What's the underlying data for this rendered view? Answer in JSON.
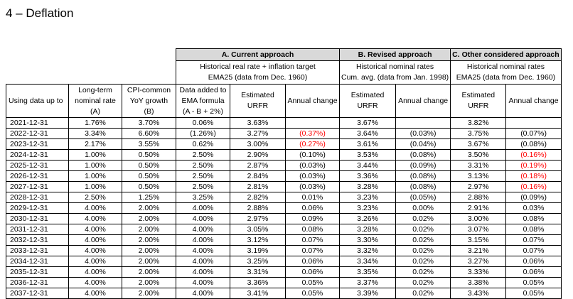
{
  "heading": "4 – Deflation",
  "groups": {
    "a": {
      "title": "A. Current approach",
      "sub1": "Historical real rate + inflation target",
      "sub2": "EMA25 (data from Dec. 1960)"
    },
    "b": {
      "title": "B. Revised approach",
      "sub1": "Historical nominal rates",
      "sub2": "Cum. avg. (data from Jan. 1998)"
    },
    "c": {
      "title": "C. Other considered approach",
      "sub1": "Historical nominal rates",
      "sub2": "EMA25 (data from Dec. 1960)"
    }
  },
  "columns": {
    "date": "Using data up to",
    "nominal": [
      "Long-term",
      "nominal rate",
      "(A)"
    ],
    "cpi": [
      "CPI-common",
      "YoY growth",
      "(B)"
    ],
    "ema": [
      "Data added to",
      "EMA formula",
      "(A - B + 2%)"
    ],
    "urfr": [
      "Estimated",
      "URFR"
    ],
    "change": "Annual change"
  },
  "colors": {
    "negative": "#ff0000",
    "header_fill": "#d9d9d9"
  },
  "rows": [
    {
      "d": "2021-12-31",
      "a": "1.76%",
      "b": "3.70%",
      "ema": "0.06%",
      "ua": "3.63%",
      "ca": "",
      "ub": "3.67%",
      "cb": "",
      "uc": "3.82%",
      "cc": ""
    },
    {
      "d": "2022-12-31",
      "a": "3.34%",
      "b": "6.60%",
      "ema": "(1.26%)",
      "ua": "3.27%",
      "ca": "(0.37%)",
      "can": true,
      "ub": "3.64%",
      "cb": "(0.03%)",
      "uc": "3.75%",
      "cc": "(0.07%)"
    },
    {
      "d": "2023-12-31",
      "a": "2.17%",
      "b": "3.55%",
      "ema": "0.62%",
      "ua": "3.00%",
      "ca": "(0.27%)",
      "can": true,
      "ub": "3.61%",
      "cb": "(0.04%)",
      "uc": "3.67%",
      "cc": "(0.08%)"
    },
    {
      "d": "2024-12-31",
      "a": "1.00%",
      "b": "0.50%",
      "ema": "2.50%",
      "ua": "2.90%",
      "ca": "(0.10%)",
      "ub": "3.53%",
      "cb": "(0.08%)",
      "uc": "3.50%",
      "cc": "(0.16%)",
      "ccn": true
    },
    {
      "d": "2025-12-31",
      "a": "1.00%",
      "b": "0.50%",
      "ema": "2.50%",
      "ua": "2.87%",
      "ca": "(0.03%)",
      "ub": "3.44%",
      "cb": "(0.09%)",
      "uc": "3.31%",
      "cc": "(0.19%)",
      "ccn": true
    },
    {
      "d": "2026-12-31",
      "a": "1.00%",
      "b": "0.50%",
      "ema": "2.50%",
      "ua": "2.84%",
      "ca": "(0.03%)",
      "ub": "3.36%",
      "cb": "(0.08%)",
      "uc": "3.13%",
      "cc": "(0.18%)",
      "ccn": true
    },
    {
      "d": "2027-12-31",
      "a": "1.00%",
      "b": "0.50%",
      "ema": "2.50%",
      "ua": "2.81%",
      "ca": "(0.03%)",
      "ub": "3.28%",
      "cb": "(0.08%)",
      "uc": "2.97%",
      "cc": "(0.16%)",
      "ccn": true
    },
    {
      "d": "2028-12-31",
      "a": "2.50%",
      "b": "1.25%",
      "ema": "3.25%",
      "ua": "2.82%",
      "ca": "0.01%",
      "ub": "3.23%",
      "cb": "(0.05%)",
      "uc": "2.88%",
      "cc": "(0.09%)"
    },
    {
      "d": "2029-12-31",
      "a": "4.00%",
      "b": "2.00%",
      "ema": "4.00%",
      "ua": "2.88%",
      "ca": "0.06%",
      "ub": "3.23%",
      "cb": "0.00%",
      "uc": "2.91%",
      "cc": "0.03%"
    },
    {
      "d": "2030-12-31",
      "a": "4.00%",
      "b": "2.00%",
      "ema": "4.00%",
      "ua": "2.97%",
      "ca": "0.09%",
      "ub": "3.26%",
      "cb": "0.02%",
      "uc": "3.00%",
      "cc": "0.08%"
    },
    {
      "d": "2031-12-31",
      "a": "4.00%",
      "b": "2.00%",
      "ema": "4.00%",
      "ua": "3.05%",
      "ca": "0.08%",
      "ub": "3.28%",
      "cb": "0.02%",
      "uc": "3.07%",
      "cc": "0.08%"
    },
    {
      "d": "2032-12-31",
      "a": "4.00%",
      "b": "2.00%",
      "ema": "4.00%",
      "ua": "3.12%",
      "ca": "0.07%",
      "ub": "3.30%",
      "cb": "0.02%",
      "uc": "3.15%",
      "cc": "0.07%"
    },
    {
      "d": "2033-12-31",
      "a": "4.00%",
      "b": "2.00%",
      "ema": "4.00%",
      "ua": "3.19%",
      "ca": "0.07%",
      "ub": "3.32%",
      "cb": "0.02%",
      "uc": "3.21%",
      "cc": "0.07%"
    },
    {
      "d": "2034-12-31",
      "a": "4.00%",
      "b": "2.00%",
      "ema": "4.00%",
      "ua": "3.25%",
      "ca": "0.06%",
      "ub": "3.34%",
      "cb": "0.02%",
      "uc": "3.27%",
      "cc": "0.06%"
    },
    {
      "d": "2035-12-31",
      "a": "4.00%",
      "b": "2.00%",
      "ema": "4.00%",
      "ua": "3.31%",
      "ca": "0.06%",
      "ub": "3.35%",
      "cb": "0.02%",
      "uc": "3.33%",
      "cc": "0.06%"
    },
    {
      "d": "2036-12-31",
      "a": "4.00%",
      "b": "2.00%",
      "ema": "4.00%",
      "ua": "3.36%",
      "ca": "0.05%",
      "ub": "3.37%",
      "cb": "0.02%",
      "uc": "3.38%",
      "cc": "0.05%"
    },
    {
      "d": "2037-12-31",
      "a": "4.00%",
      "b": "2.00%",
      "ema": "4.00%",
      "ua": "3.41%",
      "ca": "0.05%",
      "ub": "3.39%",
      "cb": "0.02%",
      "uc": "3.43%",
      "cc": "0.05%"
    }
  ]
}
